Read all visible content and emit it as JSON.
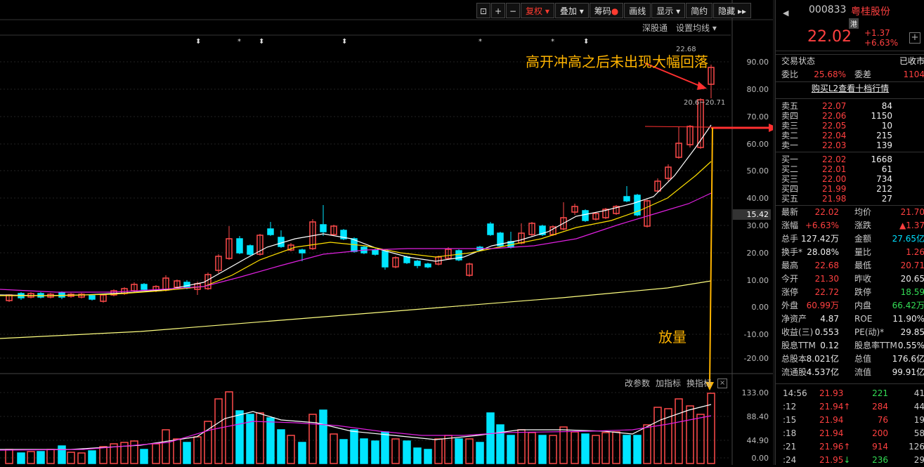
{
  "toolbar": {
    "icons": [
      "lock-icon",
      "plus-icon",
      "minus-icon"
    ],
    "fuquan": "复权",
    "diejia": "叠加",
    "chouma": "筹码",
    "huaxian": "画线",
    "xianshi": "显示",
    "jianyue": "简约",
    "yincang": "隐藏"
  },
  "sub_toolbar": {
    "shengutong": "深股通",
    "set_ma": "设置均线"
  },
  "annotations": {
    "top": "高开冲高之后未出现大幅回落",
    "vol": "放量"
  },
  "price_axis": [
    "90.00",
    "80.00",
    "70.00",
    "60.00",
    "50.00",
    "40.00",
    "30.00",
    "20.00",
    "10.00",
    "0.00",
    "-10.00",
    "-20.00"
  ],
  "vol_axis": [
    "133.00",
    "88.40",
    "44.90",
    "0.00"
  ],
  "price_tag": "15.42",
  "hl_label": "20.6~20.71",
  "hi_label": "22.68",
  "vol_toolbar": {
    "gaicanshu": "改参数",
    "jiazhibiao": "加指标",
    "huanzhibiao": "换指标"
  },
  "colors": {
    "up": "#ff4a4a",
    "down": "#00e5ff",
    "ma5": "#ffffff",
    "ma10": "#ffe000",
    "ma20": "#e020e0",
    "ma60": "#ffff80",
    "annotation": "#ffb400"
  },
  "stock": {
    "code": "000833",
    "name": "粤桂股份",
    "tag": "港",
    "price": "22.02",
    "change": "+1.37",
    "pct": "+6.63%"
  },
  "status": {
    "label": "交易状态",
    "value": "已收市"
  },
  "weibi": {
    "l1": "委比",
    "v1": "25.68%",
    "l2": "委差",
    "v2": "1104"
  },
  "l2_link": "购买L2查看十档行情",
  "asks": [
    {
      "label": "卖五",
      "price": "22.07",
      "qty": "84"
    },
    {
      "label": "卖四",
      "price": "22.06",
      "qty": "1150"
    },
    {
      "label": "卖三",
      "price": "22.05",
      "qty": "10"
    },
    {
      "label": "卖二",
      "price": "22.04",
      "qty": "215"
    },
    {
      "label": "卖一",
      "price": "22.03",
      "qty": "139"
    }
  ],
  "bids": [
    {
      "label": "买一",
      "price": "22.02",
      "qty": "1668"
    },
    {
      "label": "买二",
      "price": "22.01",
      "qty": "61"
    },
    {
      "label": "买三",
      "price": "22.00",
      "qty": "734"
    },
    {
      "label": "买四",
      "price": "21.99",
      "qty": "212"
    },
    {
      "label": "买五",
      "price": "21.98",
      "qty": "27"
    }
  ],
  "stats": [
    {
      "l1": "最新",
      "v1": "22.02",
      "c1": "red",
      "l2": "均价",
      "v2": "21.70",
      "c2": "red"
    },
    {
      "l1": "涨幅",
      "v1": "+6.63%",
      "c1": "red",
      "l2": "涨跌",
      "v2": "▲1.37",
      "c2": "red"
    },
    {
      "l1": "总手",
      "v1": "127.42万",
      "c1": "white",
      "l2": "金额",
      "v2": "27.65亿",
      "c2": "cyan"
    },
    {
      "l1": "换手*",
      "v1": "28.08%",
      "c1": "white",
      "l2": "量比",
      "v2": "1.26",
      "c2": "red"
    },
    {
      "l1": "最高",
      "v1": "22.68",
      "c1": "red",
      "l2": "最低",
      "v2": "20.71",
      "c2": "red"
    },
    {
      "l1": "今开",
      "v1": "21.30",
      "c1": "red",
      "l2": "昨收",
      "v2": "20.65",
      "c2": "white"
    },
    {
      "l1": "涨停",
      "v1": "22.72",
      "c1": "red",
      "l2": "跌停",
      "v2": "18.59",
      "c2": "green"
    },
    {
      "l1": "外盘",
      "v1": "60.99万",
      "c1": "red",
      "l2": "内盘",
      "v2": "66.42万",
      "c2": "green"
    },
    {
      "l1": "净资产",
      "v1": "4.87",
      "c1": "white",
      "l2": "ROE",
      "v2": "11.90%",
      "c2": "white"
    },
    {
      "l1": "收益(三)",
      "v1": "0.553",
      "c1": "white",
      "l2": "PE(动)*",
      "v2": "29.85",
      "c2": "white"
    },
    {
      "l1": "股息TTM",
      "v1": "0.12",
      "c1": "white",
      "l2": "股息率TTM",
      "v2": "0.55%",
      "c2": "white"
    },
    {
      "l1": "总股本",
      "v1": "8.021亿",
      "c1": "white",
      "l2": "总值",
      "v2": "176.6亿",
      "c2": "white"
    },
    {
      "l1": "流通股",
      "v1": "4.537亿",
      "c1": "white",
      "l2": "流值",
      "v2": "99.91亿",
      "c2": "white"
    }
  ],
  "ticks": [
    {
      "time": "14:56",
      "price": "21.93",
      "arrow": "",
      "vol": "221",
      "vcolor": "green",
      "n": "41"
    },
    {
      "time": ":12",
      "price": "21.94",
      "arrow": "↑",
      "vol": "284",
      "vcolor": "red",
      "n": "44"
    },
    {
      "time": ":15",
      "price": "21.94",
      "arrow": "",
      "vol": "76",
      "vcolor": "red",
      "n": "19"
    },
    {
      "time": ":18",
      "price": "21.94",
      "arrow": "",
      "vol": "200",
      "vcolor": "red",
      "n": "58"
    },
    {
      "time": ":21",
      "price": "21.96",
      "arrow": "↑",
      "vol": "914",
      "vcolor": "red",
      "n": "126"
    },
    {
      "time": ":24",
      "price": "21.95",
      "arrow": "↓",
      "vol": "236",
      "vcolor": "green",
      "n": "29"
    }
  ]
}
